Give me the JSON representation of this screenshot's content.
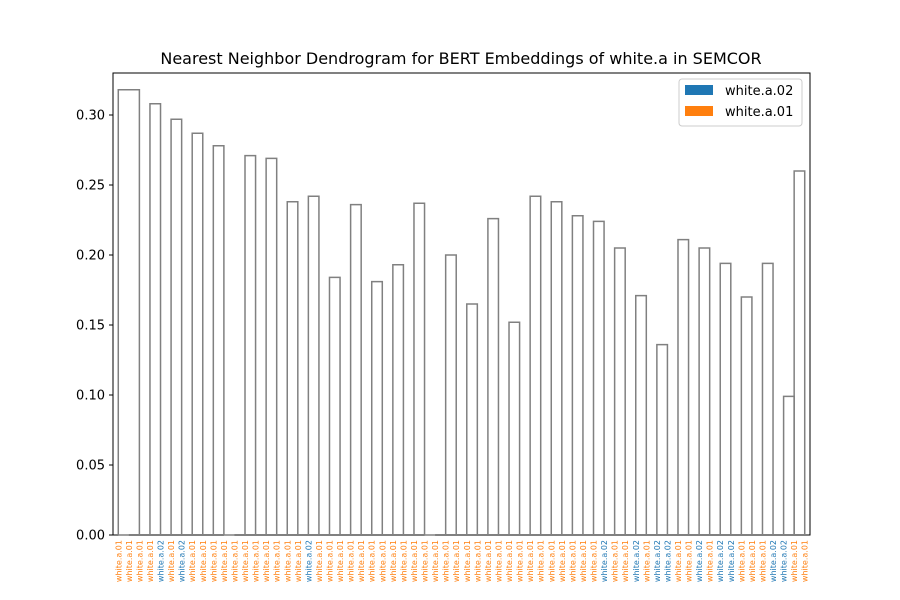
{
  "chart_data": {
    "type": "dendrogram",
    "title": "Nearest Neighbor Dendrogram for BERT Embeddings of white.a in SEMCOR",
    "ylim": [
      0,
      0.33
    ],
    "yticks": [
      "0.00",
      "0.05",
      "0.10",
      "0.15",
      "0.20",
      "0.25",
      "0.30"
    ],
    "ytick_values": [
      0,
      0.05,
      0.1,
      0.15,
      0.2,
      0.25,
      0.3
    ],
    "link_color": "#808080",
    "legend": {
      "placement": "top-right",
      "entries": [
        {
          "label": "white.a.02",
          "color": "#1f77b4"
        },
        {
          "label": "white.a.01",
          "color": "#ff7f0e"
        }
      ]
    },
    "leaf_labels": [
      "white.a.01",
      "white.a.01",
      "white.a.01",
      "white.a.01",
      "white.a.02",
      "white.a.01",
      "white.a.02",
      "white.a.01",
      "white.a.01",
      "white.a.01",
      "white.a.01",
      "white.a.01",
      "white.a.01",
      "white.a.01",
      "white.a.01",
      "white.a.01",
      "white.a.01",
      "white.a.01",
      "white.a.02",
      "white.a.01",
      "white.a.01",
      "white.a.01",
      "white.a.01",
      "white.a.01",
      "white.a.01",
      "white.a.01",
      "white.a.01",
      "white.a.01",
      "white.a.01",
      "white.a.01",
      "white.a.01",
      "white.a.01",
      "white.a.01",
      "white.a.01",
      "white.a.01",
      "white.a.01",
      "white.a.01",
      "white.a.01",
      "white.a.01",
      "white.a.01",
      "white.a.01",
      "white.a.01",
      "white.a.01",
      "white.a.01",
      "white.a.01",
      "white.a.01",
      "white.a.02",
      "white.a.01",
      "white.a.01",
      "white.a.02",
      "white.a.01",
      "white.a.02",
      "white.a.02",
      "white.a.01",
      "white.a.01",
      "white.a.02",
      "white.a.01",
      "white.a.02",
      "white.a.02",
      "white.a.01",
      "white.a.01",
      "white.a.01",
      "white.a.02",
      "white.a.02",
      "white.a.01",
      "white.a.01"
    ],
    "links": [
      {
        "a": 0,
        "b": 1,
        "h": 0.0
      },
      {
        "a": 10,
        "b": 11,
        "h": 0.0
      },
      {
        "a": 29,
        "b": 30,
        "h": 0.0
      },
      {
        "a": 64,
        "b": 65,
        "h": 0.26
      },
      {
        "a": 0,
        "b": 2,
        "h": 0.318
      },
      {
        "a": 3,
        "b": 4,
        "h": 0.308
      },
      {
        "a": 5,
        "b": 6,
        "h": 0.297
      },
      {
        "a": 7,
        "b": 8,
        "h": 0.287
      },
      {
        "a": 9,
        "b": 10,
        "h": 0.278
      },
      {
        "a": 12,
        "b": 13,
        "h": 0.271
      },
      {
        "a": 14,
        "b": 15,
        "h": 0.269
      },
      {
        "a": 16,
        "b": 17,
        "h": 0.238
      },
      {
        "a": 18,
        "b": 19,
        "h": 0.242
      },
      {
        "a": 20,
        "b": 21,
        "h": 0.184
      },
      {
        "a": 22,
        "b": 23,
        "h": 0.236
      },
      {
        "a": 24,
        "b": 25,
        "h": 0.181
      },
      {
        "a": 26,
        "b": 27,
        "h": 0.193
      },
      {
        "a": 28,
        "b": 29,
        "h": 0.237
      },
      {
        "a": 31,
        "b": 32,
        "h": 0.2
      },
      {
        "a": 33,
        "b": 34,
        "h": 0.165
      },
      {
        "a": 35,
        "b": 36,
        "h": 0.226
      },
      {
        "a": 37,
        "b": 38,
        "h": 0.152
      },
      {
        "a": 39,
        "b": 40,
        "h": 0.242
      },
      {
        "a": 41,
        "b": 42,
        "h": 0.238
      },
      {
        "a": 43,
        "b": 44,
        "h": 0.228
      },
      {
        "a": 45,
        "b": 46,
        "h": 0.224
      },
      {
        "a": 47,
        "b": 48,
        "h": 0.205
      },
      {
        "a": 49,
        "b": 50,
        "h": 0.171
      },
      {
        "a": 51,
        "b": 52,
        "h": 0.136
      },
      {
        "a": 53,
        "b": 54,
        "h": 0.211
      },
      {
        "a": 55,
        "b": 56,
        "h": 0.205
      },
      {
        "a": 57,
        "b": 58,
        "h": 0.194
      },
      {
        "a": 59,
        "b": 60,
        "h": 0.17
      },
      {
        "a": 61,
        "b": 62,
        "h": 0.194
      },
      {
        "a": 63,
        "b": 64,
        "h": 0.099
      }
    ]
  }
}
